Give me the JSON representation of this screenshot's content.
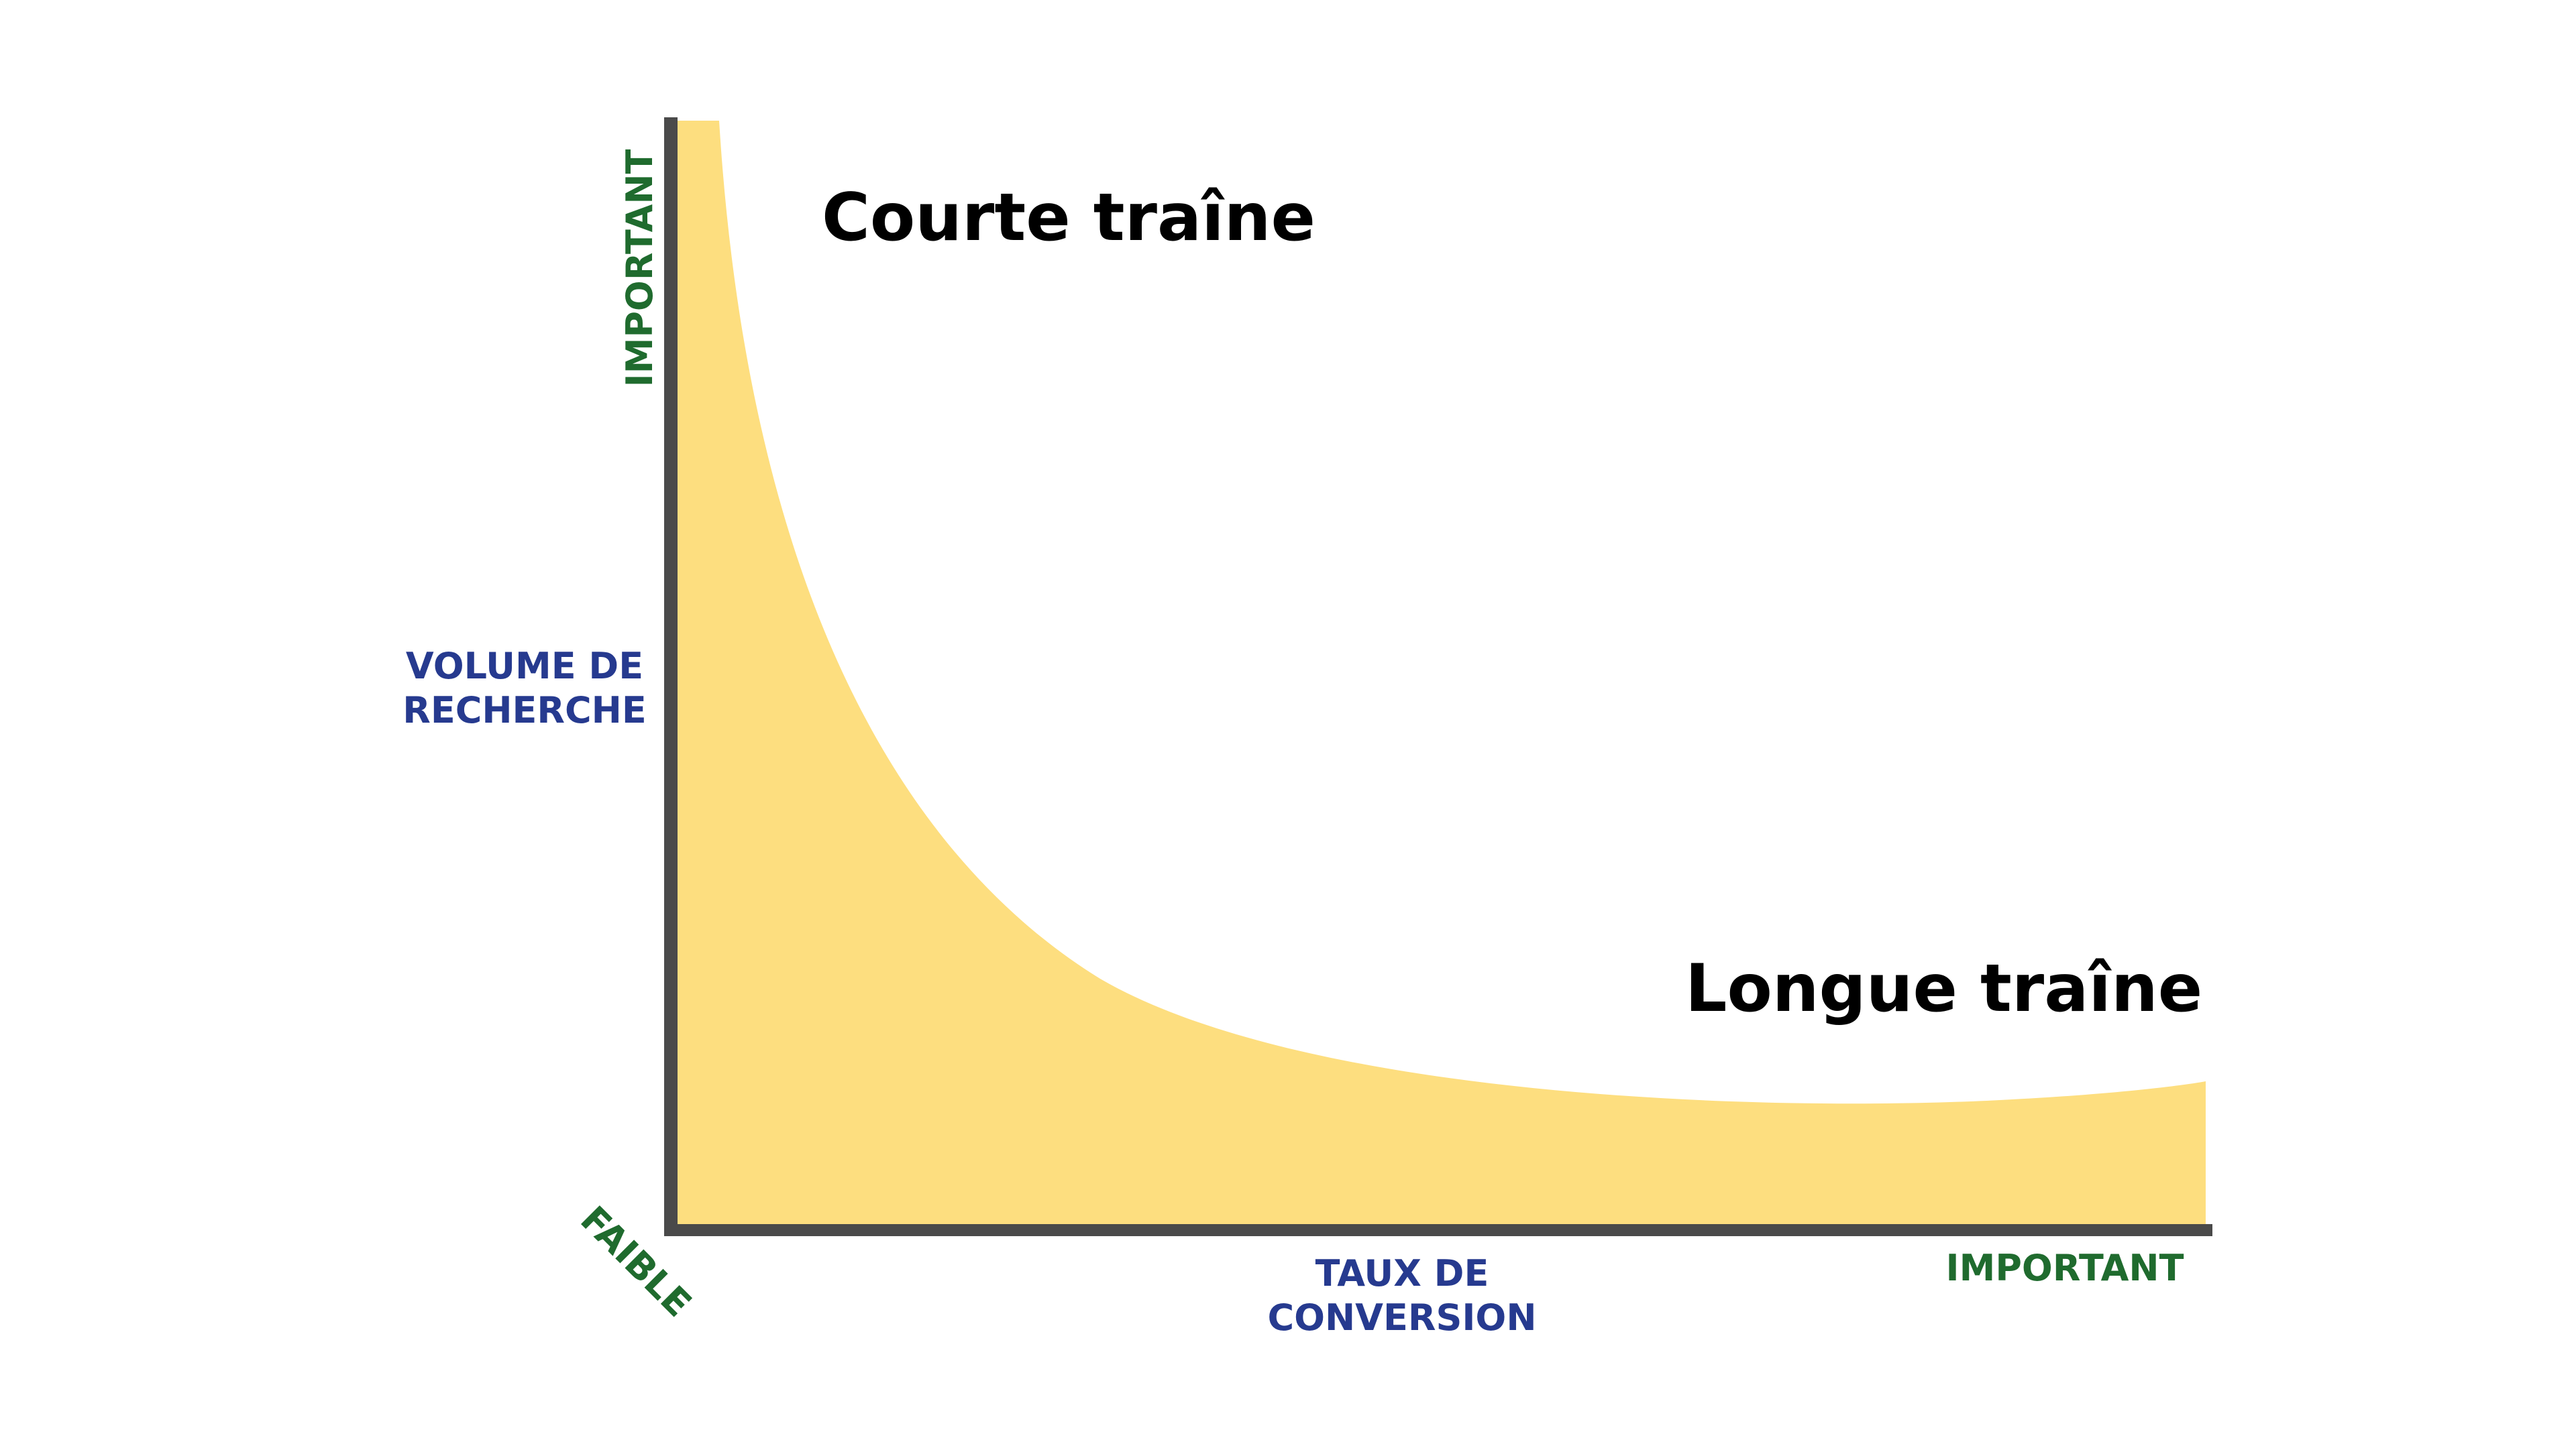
{
  "colors": {
    "curve_fill": "#fdde7f",
    "axis_stroke": "#4a4a4a",
    "axis_label_blue": "#263a8f",
    "axis_end_label_green": "#1f6b2e",
    "region_label": "#000000",
    "background": "#ffffff"
  },
  "y_axis": {
    "label_line1": "VOLUME DE",
    "label_line2": "RECHERCHE",
    "high_label": "IMPORTANT"
  },
  "x_axis": {
    "label_line1": "TAUX DE",
    "label_line2": "CONVERSION",
    "high_label": "IMPORTANT"
  },
  "origin_label": "FAIBLE",
  "regions": {
    "short_tail": "Courte traîne",
    "long_tail": "Longue traîne"
  }
}
